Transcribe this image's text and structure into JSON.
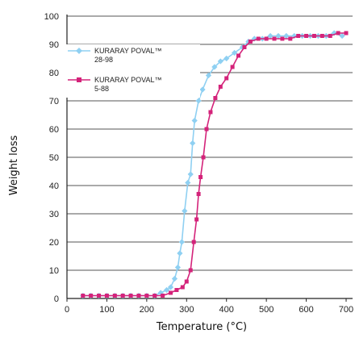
{
  "chart_data": {
    "type": "line",
    "title": "",
    "xlabel": "Temperature (°C)",
    "ylabel": "Weight loss",
    "xlim": [
      0,
      700
    ],
    "ylim": [
      0,
      100
    ],
    "xticks": [
      "0",
      "100",
      "200",
      "300",
      "400",
      "500",
      "600",
      "700"
    ],
    "yticks": [
      "0",
      "10",
      "20",
      "30",
      "40",
      "50",
      "60",
      "70",
      "80",
      "90",
      "100"
    ],
    "grid": "horizontal",
    "legend_position": "top-left",
    "series": [
      {
        "name": "KURARAY POVAL™ 28-98",
        "label_lines": [
          "KURARAY POVAL™",
          "28-98"
        ],
        "color": "#8fd0f2",
        "marker": "diamond",
        "points": [
          [
            40,
            1
          ],
          [
            60,
            1
          ],
          [
            80,
            1
          ],
          [
            100,
            1
          ],
          [
            120,
            1
          ],
          [
            140,
            1
          ],
          [
            160,
            1
          ],
          [
            180,
            1
          ],
          [
            200,
            1
          ],
          [
            220,
            1
          ],
          [
            235,
            2
          ],
          [
            250,
            3
          ],
          [
            260,
            4
          ],
          [
            270,
            7
          ],
          [
            278,
            11
          ],
          [
            283,
            16
          ],
          [
            288,
            20
          ],
          [
            295,
            31
          ],
          [
            303,
            41
          ],
          [
            310,
            44
          ],
          [
            315,
            55
          ],
          [
            320,
            63
          ],
          [
            330,
            70
          ],
          [
            340,
            74
          ],
          [
            355,
            79
          ],
          [
            370,
            82
          ],
          [
            385,
            84
          ],
          [
            400,
            85
          ],
          [
            420,
            87
          ],
          [
            440,
            89
          ],
          [
            455,
            91
          ],
          [
            470,
            92
          ],
          [
            490,
            92
          ],
          [
            510,
            93
          ],
          [
            530,
            93
          ],
          [
            550,
            93
          ],
          [
            570,
            93
          ],
          [
            590,
            93
          ],
          [
            610,
            93
          ],
          [
            630,
            93
          ],
          [
            650,
            93
          ],
          [
            670,
            94
          ],
          [
            690,
            93
          ]
        ]
      },
      {
        "name": "KURARAY POVAL™ 5-88",
        "label_lines": [
          "KURARAY POVAL™",
          "5-88"
        ],
        "color": "#d4237a",
        "marker": "square",
        "points": [
          [
            40,
            1
          ],
          [
            60,
            1
          ],
          [
            80,
            1
          ],
          [
            100,
            1
          ],
          [
            120,
            1
          ],
          [
            140,
            1
          ],
          [
            160,
            1
          ],
          [
            180,
            1
          ],
          [
            200,
            1
          ],
          [
            220,
            1
          ],
          [
            240,
            1
          ],
          [
            260,
            2
          ],
          [
            275,
            3
          ],
          [
            290,
            4
          ],
          [
            300,
            6
          ],
          [
            310,
            10
          ],
          [
            318,
            20
          ],
          [
            325,
            28
          ],
          [
            330,
            37
          ],
          [
            335,
            43
          ],
          [
            342,
            50
          ],
          [
            350,
            60
          ],
          [
            360,
            66
          ],
          [
            372,
            71
          ],
          [
            385,
            75
          ],
          [
            400,
            78
          ],
          [
            415,
            82
          ],
          [
            430,
            86
          ],
          [
            445,
            89
          ],
          [
            460,
            91
          ],
          [
            480,
            92
          ],
          [
            500,
            92
          ],
          [
            520,
            92
          ],
          [
            540,
            92
          ],
          [
            560,
            92
          ],
          [
            580,
            93
          ],
          [
            600,
            93
          ],
          [
            620,
            93
          ],
          [
            640,
            93
          ],
          [
            660,
            93
          ],
          [
            680,
            94
          ],
          [
            700,
            94
          ]
        ]
      }
    ]
  },
  "colors": {
    "grid": "#555555",
    "axis": "#222222"
  }
}
